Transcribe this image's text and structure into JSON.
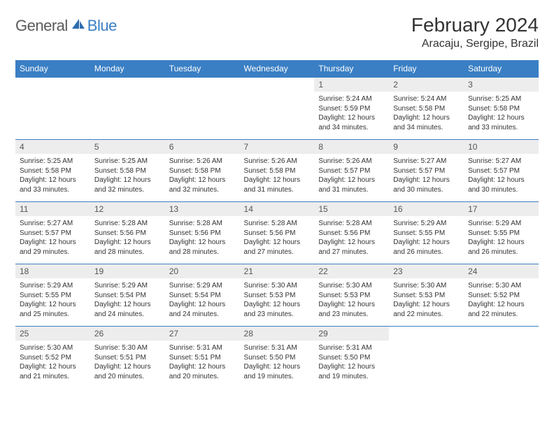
{
  "logo": {
    "general": "General",
    "blue": "Blue"
  },
  "title": "February 2024",
  "location": "Aracaju, Sergipe, Brazil",
  "colors": {
    "header_bg": "#3a7fc4",
    "header_text": "#ffffff",
    "daynum_bg": "#ededed",
    "body_text": "#333333",
    "row_border": "#3a7fc4"
  },
  "day_names": [
    "Sunday",
    "Monday",
    "Tuesday",
    "Wednesday",
    "Thursday",
    "Friday",
    "Saturday"
  ],
  "weeks": [
    [
      {
        "empty": true
      },
      {
        "empty": true
      },
      {
        "empty": true
      },
      {
        "empty": true
      },
      {
        "n": "1",
        "sr": "Sunrise: 5:24 AM",
        "ss": "Sunset: 5:59 PM",
        "dl": "Daylight: 12 hours and 34 minutes."
      },
      {
        "n": "2",
        "sr": "Sunrise: 5:24 AM",
        "ss": "Sunset: 5:58 PM",
        "dl": "Daylight: 12 hours and 34 minutes."
      },
      {
        "n": "3",
        "sr": "Sunrise: 5:25 AM",
        "ss": "Sunset: 5:58 PM",
        "dl": "Daylight: 12 hours and 33 minutes."
      }
    ],
    [
      {
        "n": "4",
        "sr": "Sunrise: 5:25 AM",
        "ss": "Sunset: 5:58 PM",
        "dl": "Daylight: 12 hours and 33 minutes."
      },
      {
        "n": "5",
        "sr": "Sunrise: 5:25 AM",
        "ss": "Sunset: 5:58 PM",
        "dl": "Daylight: 12 hours and 32 minutes."
      },
      {
        "n": "6",
        "sr": "Sunrise: 5:26 AM",
        "ss": "Sunset: 5:58 PM",
        "dl": "Daylight: 12 hours and 32 minutes."
      },
      {
        "n": "7",
        "sr": "Sunrise: 5:26 AM",
        "ss": "Sunset: 5:58 PM",
        "dl": "Daylight: 12 hours and 31 minutes."
      },
      {
        "n": "8",
        "sr": "Sunrise: 5:26 AM",
        "ss": "Sunset: 5:57 PM",
        "dl": "Daylight: 12 hours and 31 minutes."
      },
      {
        "n": "9",
        "sr": "Sunrise: 5:27 AM",
        "ss": "Sunset: 5:57 PM",
        "dl": "Daylight: 12 hours and 30 minutes."
      },
      {
        "n": "10",
        "sr": "Sunrise: 5:27 AM",
        "ss": "Sunset: 5:57 PM",
        "dl": "Daylight: 12 hours and 30 minutes."
      }
    ],
    [
      {
        "n": "11",
        "sr": "Sunrise: 5:27 AM",
        "ss": "Sunset: 5:57 PM",
        "dl": "Daylight: 12 hours and 29 minutes."
      },
      {
        "n": "12",
        "sr": "Sunrise: 5:28 AM",
        "ss": "Sunset: 5:56 PM",
        "dl": "Daylight: 12 hours and 28 minutes."
      },
      {
        "n": "13",
        "sr": "Sunrise: 5:28 AM",
        "ss": "Sunset: 5:56 PM",
        "dl": "Daylight: 12 hours and 28 minutes."
      },
      {
        "n": "14",
        "sr": "Sunrise: 5:28 AM",
        "ss": "Sunset: 5:56 PM",
        "dl": "Daylight: 12 hours and 27 minutes."
      },
      {
        "n": "15",
        "sr": "Sunrise: 5:28 AM",
        "ss": "Sunset: 5:56 PM",
        "dl": "Daylight: 12 hours and 27 minutes."
      },
      {
        "n": "16",
        "sr": "Sunrise: 5:29 AM",
        "ss": "Sunset: 5:55 PM",
        "dl": "Daylight: 12 hours and 26 minutes."
      },
      {
        "n": "17",
        "sr": "Sunrise: 5:29 AM",
        "ss": "Sunset: 5:55 PM",
        "dl": "Daylight: 12 hours and 26 minutes."
      }
    ],
    [
      {
        "n": "18",
        "sr": "Sunrise: 5:29 AM",
        "ss": "Sunset: 5:55 PM",
        "dl": "Daylight: 12 hours and 25 minutes."
      },
      {
        "n": "19",
        "sr": "Sunrise: 5:29 AM",
        "ss": "Sunset: 5:54 PM",
        "dl": "Daylight: 12 hours and 24 minutes."
      },
      {
        "n": "20",
        "sr": "Sunrise: 5:29 AM",
        "ss": "Sunset: 5:54 PM",
        "dl": "Daylight: 12 hours and 24 minutes."
      },
      {
        "n": "21",
        "sr": "Sunrise: 5:30 AM",
        "ss": "Sunset: 5:53 PM",
        "dl": "Daylight: 12 hours and 23 minutes."
      },
      {
        "n": "22",
        "sr": "Sunrise: 5:30 AM",
        "ss": "Sunset: 5:53 PM",
        "dl": "Daylight: 12 hours and 23 minutes."
      },
      {
        "n": "23",
        "sr": "Sunrise: 5:30 AM",
        "ss": "Sunset: 5:53 PM",
        "dl": "Daylight: 12 hours and 22 minutes."
      },
      {
        "n": "24",
        "sr": "Sunrise: 5:30 AM",
        "ss": "Sunset: 5:52 PM",
        "dl": "Daylight: 12 hours and 22 minutes."
      }
    ],
    [
      {
        "n": "25",
        "sr": "Sunrise: 5:30 AM",
        "ss": "Sunset: 5:52 PM",
        "dl": "Daylight: 12 hours and 21 minutes."
      },
      {
        "n": "26",
        "sr": "Sunrise: 5:30 AM",
        "ss": "Sunset: 5:51 PM",
        "dl": "Daylight: 12 hours and 20 minutes."
      },
      {
        "n": "27",
        "sr": "Sunrise: 5:31 AM",
        "ss": "Sunset: 5:51 PM",
        "dl": "Daylight: 12 hours and 20 minutes."
      },
      {
        "n": "28",
        "sr": "Sunrise: 5:31 AM",
        "ss": "Sunset: 5:50 PM",
        "dl": "Daylight: 12 hours and 19 minutes."
      },
      {
        "n": "29",
        "sr": "Sunrise: 5:31 AM",
        "ss": "Sunset: 5:50 PM",
        "dl": "Daylight: 12 hours and 19 minutes."
      },
      {
        "empty": true
      },
      {
        "empty": true
      }
    ]
  ]
}
